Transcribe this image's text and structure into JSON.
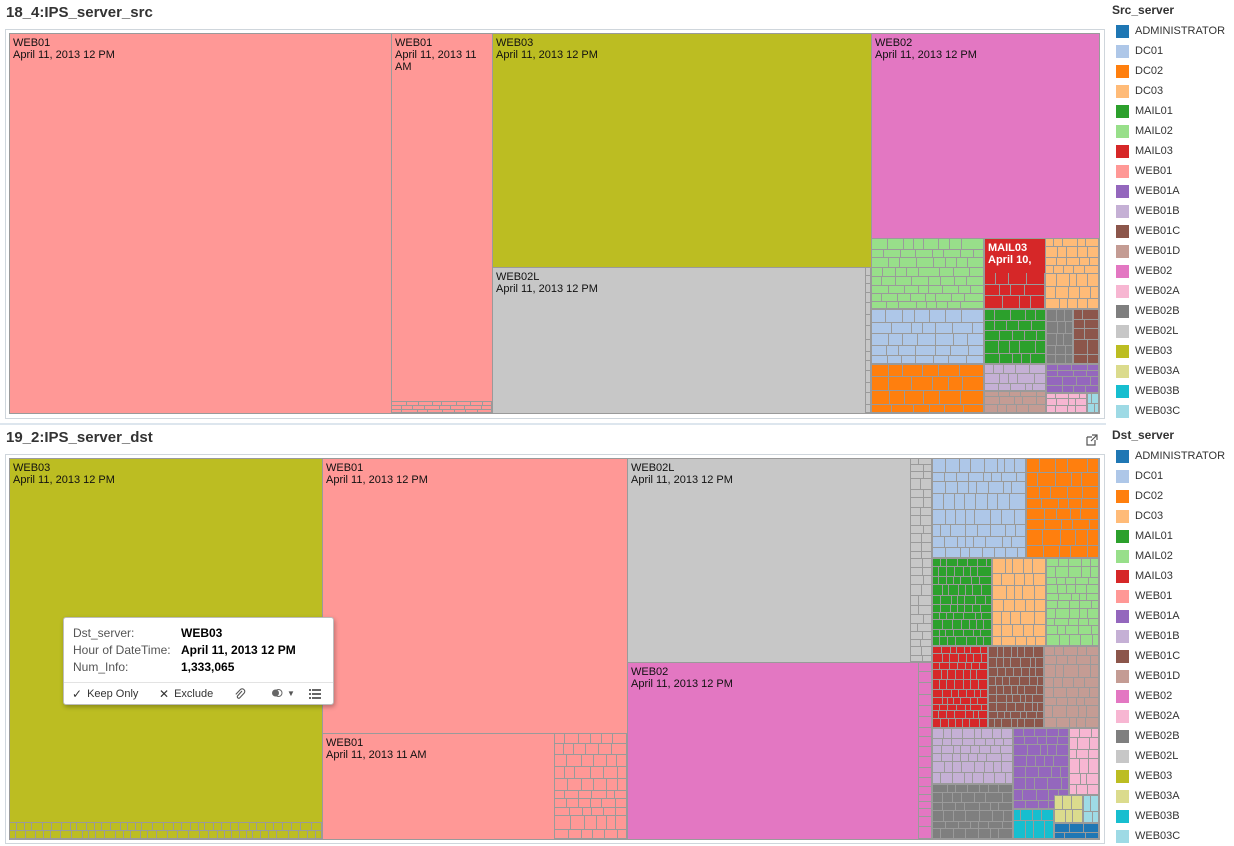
{
  "colors": {
    "ADMINISTRATOR": "#1f77b4",
    "DC01": "#aec7e8",
    "DC02": "#ff7f0e",
    "DC03": "#ffbb78",
    "MAIL01": "#2ca02c",
    "MAIL02": "#98df8a",
    "MAIL03": "#d62728",
    "WEB01": "#ff9896",
    "WEB01A": "#9467bd",
    "WEB01B": "#c5b0d5",
    "WEB01C": "#8c564b",
    "WEB01D": "#c49c94",
    "WEB02": "#e377c2",
    "WEB02A": "#f7b6d2",
    "WEB02B": "#7f7f7f",
    "WEB02L": "#c7c7c7",
    "WEB03": "#bcbd22",
    "WEB03A": "#dbdb8d",
    "WEB03B": "#17becf",
    "WEB03C": "#9edae5"
  },
  "src_panel": {
    "title": "18_4:IPS_server_src",
    "tiles": [
      {
        "server": "WEB01",
        "time": "April 11, 2013 12 PM"
      },
      {
        "server": "WEB01",
        "time": "April 11, 2013 11 AM"
      },
      {
        "server": "WEB03",
        "time": "April 11, 2013 12 PM"
      },
      {
        "server": "WEB02L",
        "time": "April 11, 2013 12 PM"
      },
      {
        "server": "WEB02",
        "time": "April 11, 2013 12 PM"
      },
      {
        "server": "MAIL03",
        "time": "April 10,"
      }
    ],
    "legend": {
      "title": "Src_server",
      "items": [
        "ADMINISTRATOR",
        "DC01",
        "DC02",
        "DC03",
        "MAIL01",
        "MAIL02",
        "MAIL03",
        "WEB01",
        "WEB01A",
        "WEB01B",
        "WEB01C",
        "WEB01D",
        "WEB02",
        "WEB02A",
        "WEB02B",
        "WEB02L",
        "WEB03",
        "WEB03A",
        "WEB03B",
        "WEB03C"
      ]
    }
  },
  "dst_panel": {
    "title": "19_2:IPS_server_dst",
    "tiles": [
      {
        "server": "WEB03",
        "time": "April 11, 2013 12 PM"
      },
      {
        "server": "WEB01",
        "time": "April 11, 2013 12 PM"
      },
      {
        "server": "WEB01",
        "time": "April 11, 2013 11 AM"
      },
      {
        "server": "WEB02L",
        "time": "April 11, 2013 12 PM"
      },
      {
        "server": "WEB02",
        "time": "April 11, 2013 12 PM"
      }
    ],
    "legend": {
      "title": "Dst_server",
      "items": [
        "ADMINISTRATOR",
        "DC01",
        "DC02",
        "DC03",
        "MAIL01",
        "MAIL02",
        "MAIL03",
        "WEB01",
        "WEB01A",
        "WEB01B",
        "WEB01C",
        "WEB01D",
        "WEB02",
        "WEB02A",
        "WEB02B",
        "WEB02L",
        "WEB03",
        "WEB03A",
        "WEB03B",
        "WEB03C"
      ]
    },
    "popout_icon": "popout-icon"
  },
  "tooltip": {
    "rows": [
      {
        "key": "Dst_server:",
        "value": "WEB03"
      },
      {
        "key": "Hour of DateTime:",
        "value": "April 11, 2013 12 PM"
      },
      {
        "key": "Num_Info:",
        "value": "1,333,065"
      }
    ],
    "actions": {
      "keep_only": "Keep Only",
      "exclude": "Exclude"
    },
    "icons": [
      "check-icon",
      "x-icon",
      "paperclip-icon",
      "group-icon",
      "chevron-down-icon",
      "view-data-icon"
    ]
  }
}
